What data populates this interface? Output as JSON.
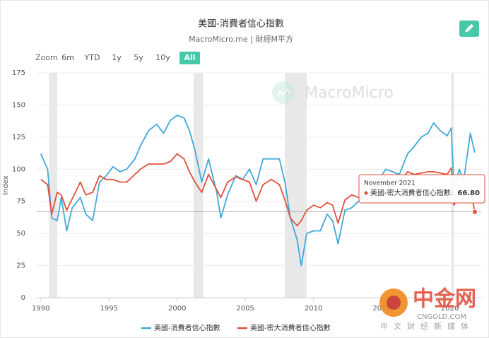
{
  "chart_data": {
    "type": "line",
    "title": "美國-消費者信心指數",
    "subtitle": "MacroMicro.me | 財經M平方",
    "zoom_label": "Zoom",
    "zoom_buttons": [
      "6m",
      "YTD",
      "1y",
      "5y",
      "10y",
      "All"
    ],
    "y_label": "Index",
    "x": [
      1990.0,
      1990.5,
      1990.8,
      1991.2,
      1991.5,
      1991.9,
      1992.3,
      1992.9,
      1993.3,
      1993.8,
      1994.3,
      1994.8,
      1995.3,
      1995.8,
      1996.3,
      1996.9,
      1997.3,
      1997.9,
      1998.5,
      1999.0,
      1999.5,
      2000.0,
      2000.5,
      2000.9,
      2001.3,
      2001.8,
      2002.3,
      2002.9,
      2003.2,
      2003.7,
      2004.3,
      2004.8,
      2005.3,
      2005.8,
      2006.3,
      2006.9,
      2007.5,
      2007.9,
      2008.3,
      2008.8,
      2009.1,
      2009.5,
      2010.0,
      2010.5,
      2011.0,
      2011.4,
      2011.8,
      2012.3,
      2012.8,
      2013.3,
      2013.8,
      2014.3,
      2014.8,
      2015.3,
      2015.8,
      2016.3,
      2016.9,
      2017.4,
      2017.9,
      2018.4,
      2018.8,
      2019.3,
      2019.8,
      2020.1,
      2020.3,
      2020.7,
      2021.0,
      2021.5,
      2021.83
    ],
    "series": [
      {
        "name": "美國-消費者信心指數",
        "color": "#41a9d9",
        "values": [
          112,
          100,
          62,
          60,
          78,
          52,
          70,
          78,
          65,
          60,
          90,
          95,
          102,
          98,
          100,
          108,
          118,
          130,
          135,
          128,
          138,
          142,
          140,
          130,
          115,
          90,
          108,
          82,
          62,
          80,
          95,
          92,
          100,
          88,
          108,
          108,
          108,
          90,
          62,
          45,
          25,
          50,
          52,
          52,
          65,
          60,
          42,
          68,
          70,
          75,
          80,
          83,
          92,
          100,
          98,
          96,
          112,
          118,
          125,
          128,
          136,
          130,
          126,
          132,
          86,
          100,
          90,
          128,
          113
        ]
      },
      {
        "name": "美國-密大消費者信心指數",
        "color": "#e0513d",
        "values": [
          92,
          88,
          65,
          82,
          80,
          68,
          77,
          90,
          80,
          82,
          95,
          92,
          92,
          90,
          90,
          96,
          100,
          104,
          104,
          104,
          106,
          112,
          108,
          98,
          90,
          82,
          96,
          84,
          78,
          90,
          94,
          92,
          90,
          75,
          88,
          92,
          88,
          76,
          62,
          56,
          60,
          68,
          72,
          70,
          74,
          72,
          58,
          76,
          80,
          78,
          75,
          82,
          88,
          95,
          91,
          90,
          98,
          96,
          97,
          98,
          98,
          97,
          96,
          101,
          72,
          80,
          79,
          85,
          66.8
        ]
      }
    ],
    "recessions": [
      [
        1990.6,
        1991.2
      ],
      [
        2001.2,
        2001.9
      ],
      [
        2007.9,
        2009.5
      ],
      [
        2020.1,
        2020.3
      ]
    ],
    "xlim": [
      1989.7,
      2022.3
    ],
    "xticks": [
      1990,
      1995,
      2000,
      2005,
      2010,
      2015,
      2020
    ],
    "ylim": [
      0,
      175
    ],
    "yticks": [
      0,
      25,
      50,
      75,
      100,
      125,
      150,
      175
    ],
    "grid": true,
    "tooltip": {
      "date": "November 2021",
      "series_index": 1,
      "point_index": 68,
      "label": "美國-密大消費者信心指數:",
      "value_label": "66.80"
    },
    "watermark": "MacroMicro",
    "logo": {
      "name": "中金网",
      "domain": "CNGOLD.COM",
      "slogan": "中文财经新媒体"
    }
  }
}
